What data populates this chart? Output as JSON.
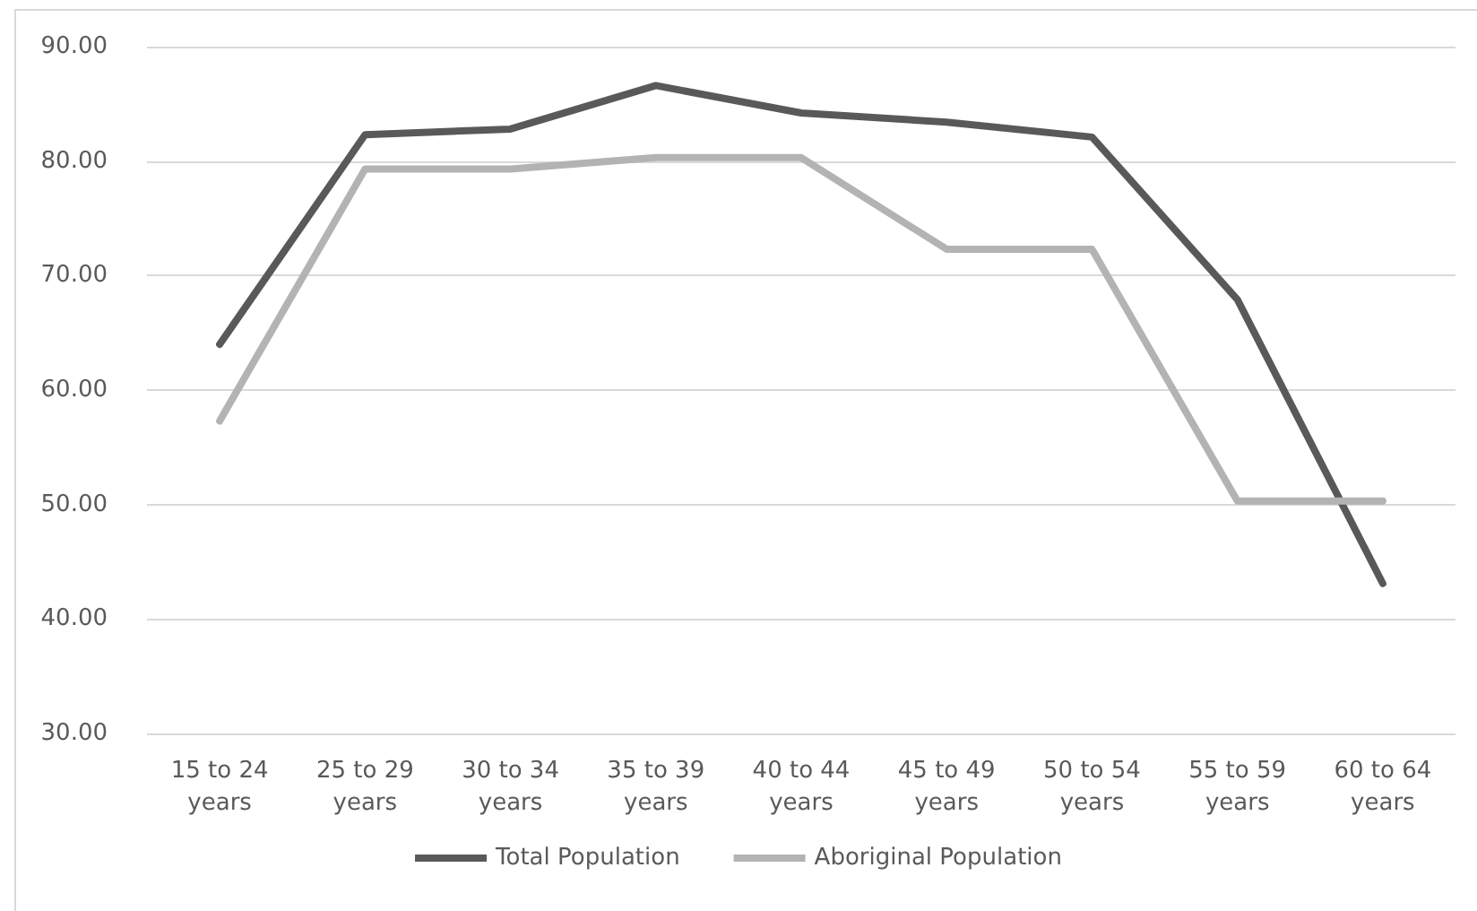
{
  "chart_data": {
    "type": "line",
    "categories": [
      "15 to 24\nyears",
      "25 to 29\nyears",
      "30 to 34\nyears",
      "35 to 39\nyears",
      "40 to 44\nyears",
      "45 to 49\nyears",
      "50 to 54\nyears",
      "55 to 59\nyears",
      "60 to 64\nyears"
    ],
    "series": [
      {
        "name": "Total Population",
        "color": "#595959",
        "values": [
          64.0,
          82.3,
          82.8,
          86.6,
          84.2,
          83.4,
          82.1,
          67.9,
          43.1
        ]
      },
      {
        "name": "Aboriginal Population",
        "color": "#b3b3b3",
        "values": [
          57.3,
          79.3,
          79.3,
          80.3,
          80.3,
          72.3,
          72.3,
          50.3,
          50.3
        ]
      }
    ],
    "ylim": [
      30,
      90
    ],
    "yticks": [
      {
        "value": 30,
        "label": "30.00"
      },
      {
        "value": 40,
        "label": "40.00"
      },
      {
        "value": 50,
        "label": "50.00"
      },
      {
        "value": 60,
        "label": "60.00"
      },
      {
        "value": 70,
        "label": "70.00"
      },
      {
        "value": 80,
        "label": "80.00"
      },
      {
        "value": 90,
        "label": "90.00"
      }
    ],
    "grid": "y",
    "legend": "bottom",
    "marker": "none",
    "line_style": "solid"
  }
}
